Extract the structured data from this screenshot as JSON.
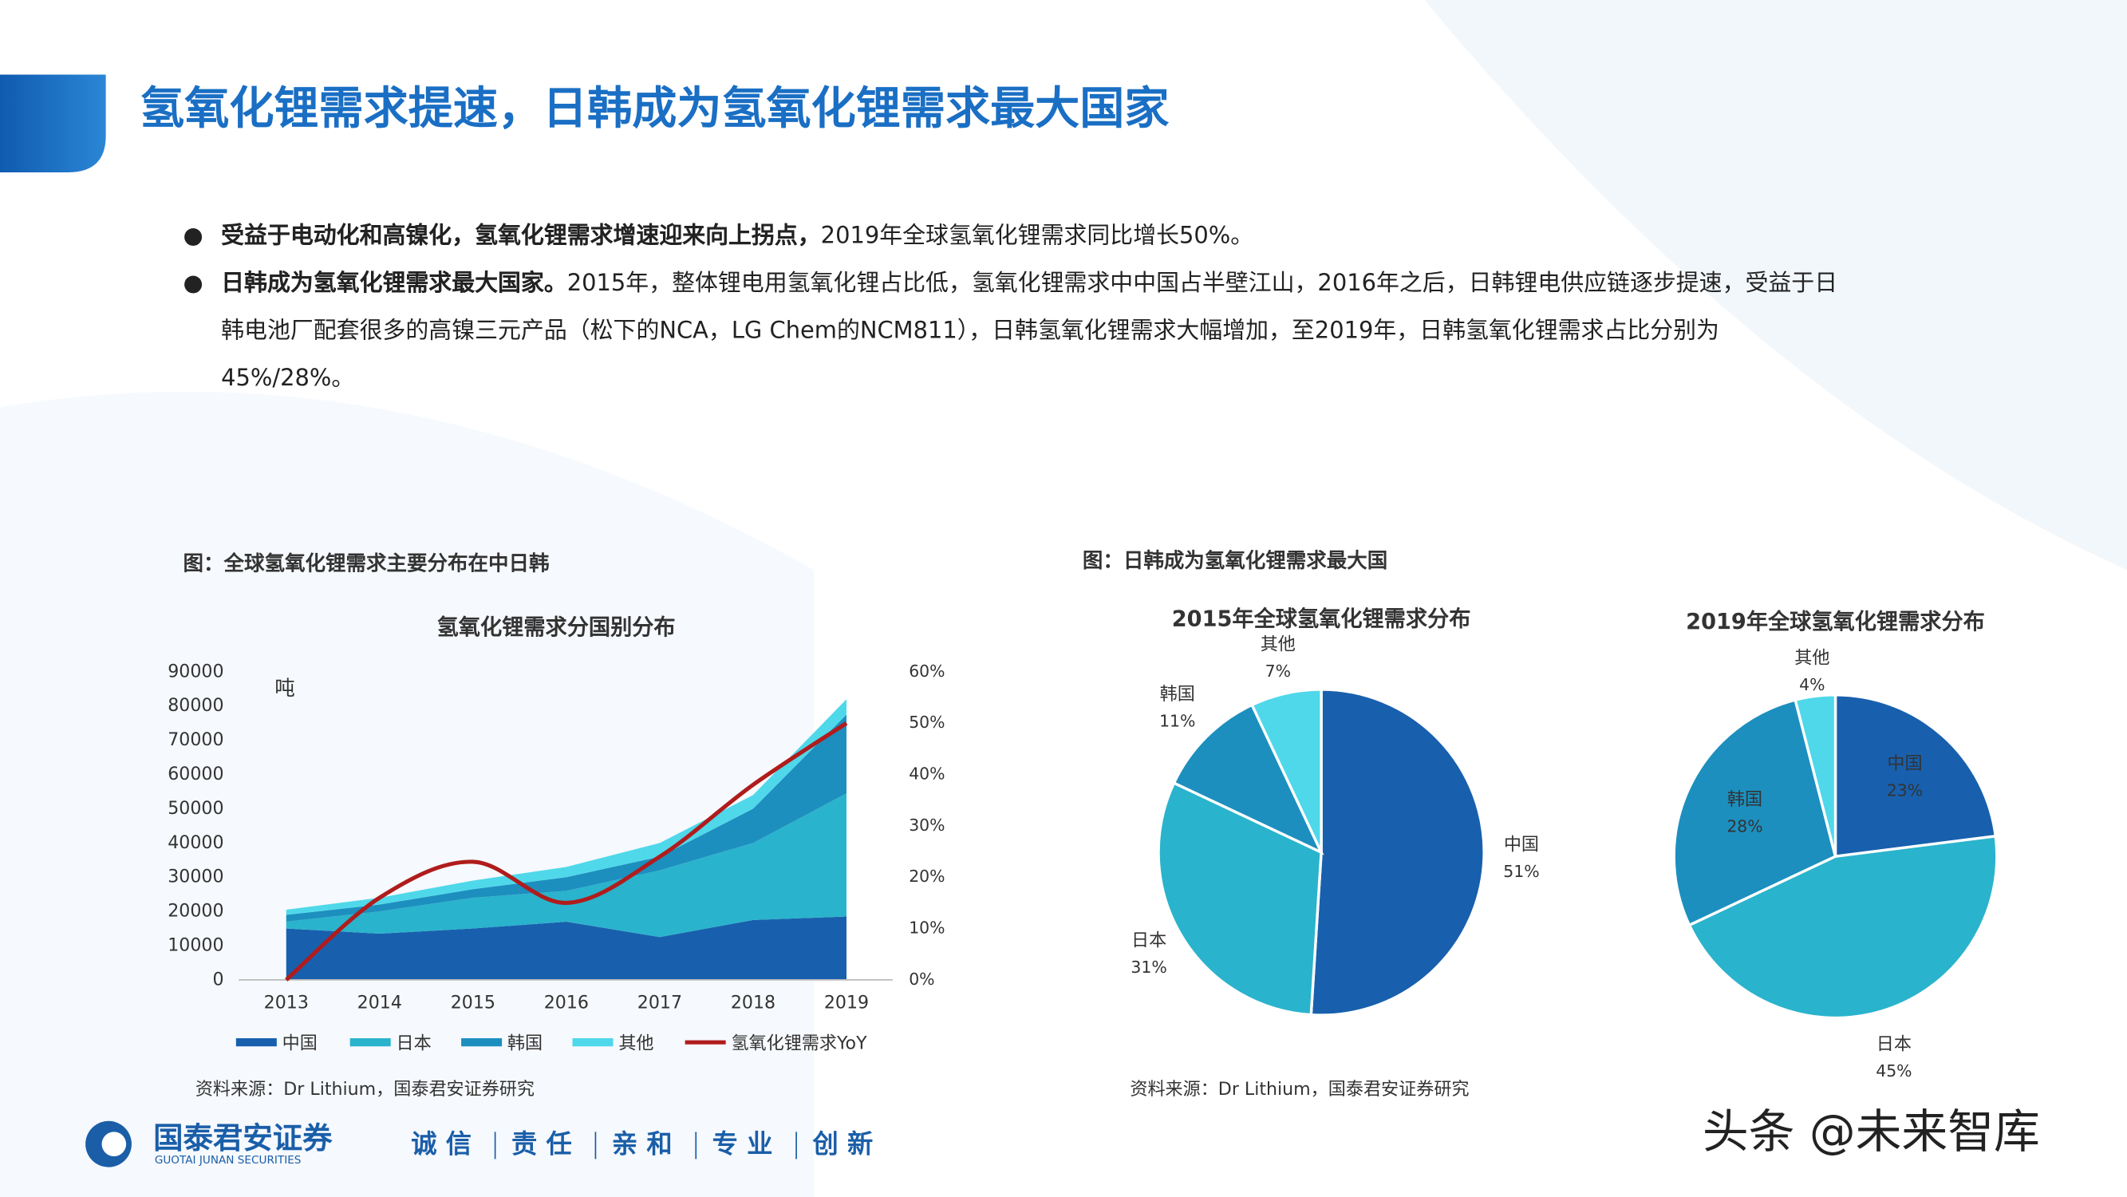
{
  "header": {
    "title": "氢氧化锂需求提速，日韩成为氢氧化锂需求最大国家"
  },
  "bullets": [
    {
      "bold": "受益于电动化和高镍化，氢氧化锂需求增速迎来向上拐点，",
      "text": "2019年全球氢氧化锂需求同比增长50%。"
    },
    {
      "bold": "日韩成为氢氧化锂需求最大国家。",
      "text": "2015年，整体锂电用氢氧化锂占比低，氢氧化锂需求中中国占半壁江山，2016年之后，日韩锂电供应链逐步提速，受益于日韩电池厂配套很多的高镍三元产品（松下的NCA，LG Chem的NCM811），日韩氢氧化锂需求大幅增加，至2019年，日韩氢氧化锂需求占比分别为45%/28%。"
    }
  ],
  "figures": [
    {
      "caption": "图：全球氢氧化锂需求主要分布在中日韩",
      "source": "资料来源：Dr Lithium，国泰君安证券研究"
    },
    {
      "caption": "图：日韩成为氢氧化锂需求最大国",
      "source": "资料来源：Dr Lithium，国泰君安证券研究"
    }
  ],
  "chart_data": [
    {
      "type": "stacked-area",
      "title": "氢氧化锂需求分国别分布",
      "y_label": "吨",
      "categories": [
        "2013",
        "2014",
        "2015",
        "2016",
        "2017",
        "2018",
        "2019"
      ],
      "series": [
        {
          "name": "中国",
          "color": "#1860ad",
          "values": [
            15000,
            13500,
            15000,
            17000,
            12500,
            17500,
            18500
          ]
        },
        {
          "name": "日本",
          "color": "#2ab3cc",
          "values": [
            2000,
            6500,
            9000,
            9000,
            19500,
            22500,
            36000
          ]
        },
        {
          "name": "韩国",
          "color": "#1c8fbf",
          "values": [
            2000,
            2000,
            2500,
            4000,
            4000,
            10000,
            23000
          ]
        },
        {
          "name": "其他",
          "color": "#4fd8ea",
          "values": [
            1500,
            2000,
            2500,
            3000,
            4000,
            4000,
            4500
          ]
        },
        {
          "name": "氢氧化锂需求YoY",
          "color": "#b01c1c",
          "axis": "y2",
          "values": [
            0,
            16,
            23,
            15,
            24,
            38,
            50
          ]
        }
      ],
      "ylim": [
        0,
        90000
      ],
      "yticks": [
        0,
        10000,
        20000,
        30000,
        40000,
        50000,
        60000,
        70000,
        80000,
        90000
      ],
      "y2lim": [
        0,
        60
      ],
      "y2ticks": [
        {
          "value": 0,
          "label": "0%"
        },
        {
          "value": 10,
          "label": "10%"
        },
        {
          "value": 20,
          "label": "20%"
        },
        {
          "value": 30,
          "label": "30%"
        },
        {
          "value": 40,
          "label": "40%"
        },
        {
          "value": 50,
          "label": "50%"
        },
        {
          "value": 60,
          "label": "60%"
        }
      ],
      "legend": "bottom"
    },
    {
      "type": "pie",
      "title": "2015年全球氢氧化锂需求分布",
      "categories": [
        "中国",
        "日本",
        "韩国",
        "其他"
      ],
      "values": [
        51,
        31,
        11,
        7
      ],
      "value_labels": [
        "51%",
        "31%",
        "11%",
        "7%"
      ],
      "colors": [
        "#1860ad",
        "#2ab3cc",
        "#1c8fbf",
        "#4fd8ea"
      ]
    },
    {
      "type": "pie",
      "title": "2019年全球氢氧化锂需求分布",
      "categories": [
        "中国",
        "日本",
        "韩国",
        "其他"
      ],
      "values": [
        23,
        45,
        28,
        4
      ],
      "value_labels": [
        "23%",
        "45%",
        "28%",
        "4%"
      ],
      "colors": [
        "#1860ad",
        "#2ab3cc",
        "#1c8fbf",
        "#4fd8ea"
      ]
    }
  ],
  "footer": {
    "company": "国泰君安证券",
    "company_en": "GUOTAI JUNAN SECURITIES",
    "slogan": [
      "诚 信",
      "责 任",
      "亲 和",
      "专 业",
      "创 新"
    ],
    "watermark": "头条 @未来智库"
  }
}
